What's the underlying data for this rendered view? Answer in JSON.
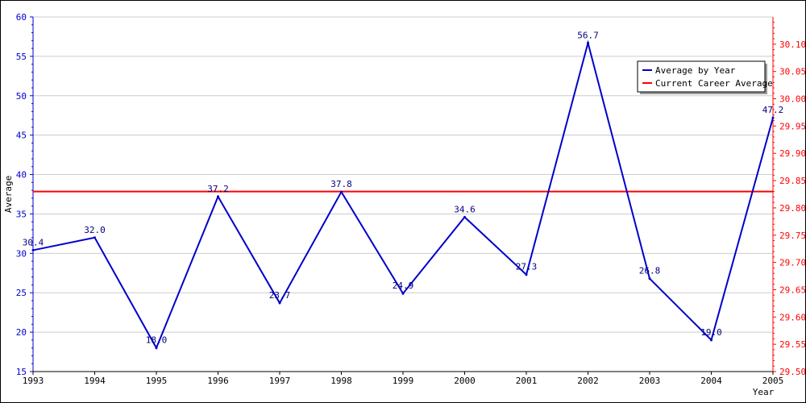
{
  "colors": {
    "average_series": "#0000cc",
    "career_average": "#ff0000",
    "left_axis": "#0000cc",
    "right_axis": "#ff0000",
    "grid": "#cccccc",
    "background": "#ffffff"
  },
  "chart_data": {
    "type": "line",
    "title": "",
    "xlabel": "Year",
    "ylabel": "Average",
    "x": [
      "1993",
      "1994",
      "1995",
      "1996",
      "1997",
      "1998",
      "1999",
      "2000",
      "2001",
      "2002",
      "2003",
      "2004",
      "2005"
    ],
    "series": [
      {
        "name": "Average by Year",
        "axis": "left",
        "values": [
          30.4,
          32.0,
          18.0,
          37.2,
          23.7,
          37.8,
          24.9,
          34.6,
          27.3,
          56.7,
          26.8,
          19.0,
          47.2
        ],
        "labels": [
          "30.4",
          "32.0",
          "18.0",
          "37.2",
          "23.7",
          "37.8",
          "24.9",
          "34.6",
          "27.3",
          "56.7",
          "26.8",
          "19.0",
          "47.2"
        ]
      },
      {
        "name": "Current Career Average",
        "axis": "right",
        "values": [
          29.83,
          29.83,
          29.83,
          29.83,
          29.83,
          29.83,
          29.83,
          29.83,
          29.83,
          29.83,
          29.83,
          29.83,
          29.83
        ]
      }
    ],
    "y_left": {
      "lim": [
        15,
        60
      ],
      "ticks": [
        "15",
        "20",
        "25",
        "30",
        "35",
        "40",
        "45",
        "50",
        "55",
        "60"
      ]
    },
    "y_right": {
      "lim": [
        29.5,
        30.15
      ],
      "ticks": [
        "29.50",
        "29.55",
        "29.60",
        "29.65",
        "29.70",
        "29.75",
        "29.80",
        "29.85",
        "29.90",
        "29.95",
        "30.00",
        "30.05",
        "30.10"
      ]
    },
    "grid": true,
    "legend": {
      "position": "top-right",
      "entries": [
        "Average by Year",
        "Current Career Average"
      ]
    }
  }
}
